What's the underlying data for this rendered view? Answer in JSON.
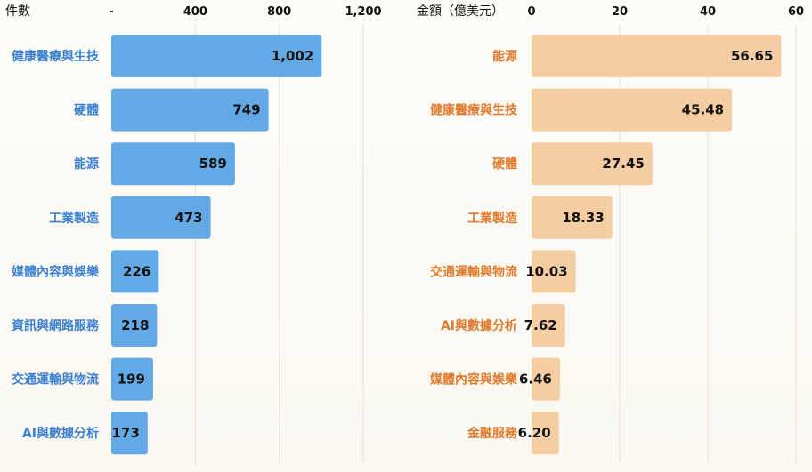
{
  "chart_data": [
    {
      "type": "bar",
      "orientation": "horizontal",
      "axis_title": "件數",
      "tick_labels": [
        "-",
        "400",
        "800",
        "1,200"
      ],
      "xlim": [
        0,
        1200
      ],
      "grid": true,
      "categories": [
        "健康醫療與生技",
        "硬體",
        "能源",
        "工業製造",
        "媒體內容與娛樂",
        "資訊與網路服務",
        "交通運輸與物流",
        "AI與數據分析"
      ],
      "values": [
        1002,
        749,
        589,
        473,
        226,
        218,
        199,
        173
      ],
      "value_labels": [
        "1,002",
        "749",
        "589",
        "473",
        "226",
        "218",
        "199",
        "173"
      ],
      "bar_color": "#63a9e6",
      "label_color": "#3b7fd0"
    },
    {
      "type": "bar",
      "orientation": "horizontal",
      "axis_title": "金額（億美元）",
      "tick_labels": [
        "0",
        "20",
        "40",
        "60"
      ],
      "xlim": [
        0,
        60
      ],
      "grid": true,
      "categories": [
        "能源",
        "健康醫療與生技",
        "硬體",
        "工業製造",
        "交通運輸與物流",
        "AI與數據分析",
        "媒體內容與娛樂",
        "金融服務"
      ],
      "values": [
        56.65,
        45.48,
        27.45,
        18.33,
        10.03,
        7.62,
        6.46,
        6.2
      ],
      "value_labels": [
        "56.65",
        "45.48",
        "27.45",
        "18.33",
        "10.03",
        "7.62",
        "6.46",
        "6.20"
      ],
      "bar_color": "#f4cda3",
      "label_color": "#e2782a"
    }
  ]
}
